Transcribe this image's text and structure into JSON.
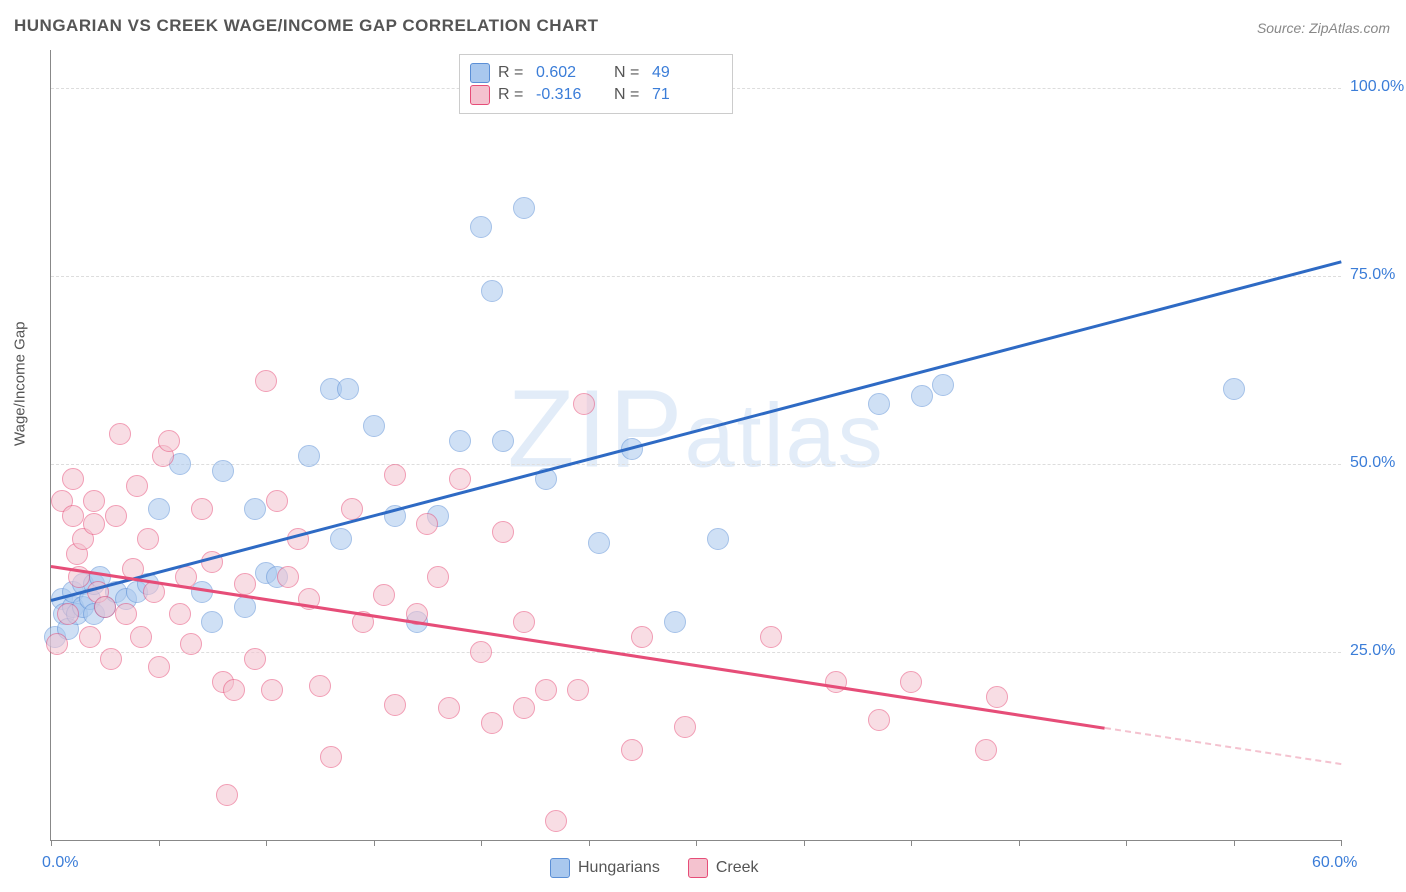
{
  "title": "HUNGARIAN VS CREEK WAGE/INCOME GAP CORRELATION CHART",
  "source": "Source: ZipAtlas.com",
  "watermark": "ZIPatlas",
  "ylabel": "Wage/Income Gap",
  "chart": {
    "type": "scatter",
    "background_color": "#ffffff",
    "grid_color": "#dddddd",
    "axis_color": "#888888",
    "label_color": "#555555",
    "tick_label_color": "#3b7dd8",
    "xlim": [
      0,
      60
    ],
    "ylim": [
      0,
      105
    ],
    "x_tick_positions": [
      0,
      5,
      10,
      15,
      20,
      25,
      30,
      35,
      40,
      45,
      50,
      55,
      60
    ],
    "x_tick_labels": {
      "0": "0.0%",
      "60": "60.0%"
    },
    "y_gridlines": [
      25,
      50,
      75,
      100
    ],
    "y_tick_labels": {
      "25": "25.0%",
      "50": "50.0%",
      "75": "75.0%",
      "100": "100.0%"
    },
    "point_radius": 10,
    "point_opacity": 0.55,
    "title_fontsize": 17,
    "label_fontsize": 15,
    "tick_fontsize": 16
  },
  "series": [
    {
      "name": "Hungarians",
      "color_fill": "#a9c8ee",
      "color_stroke": "#5b8fd6",
      "r": "0.602",
      "n": "49",
      "regression": {
        "x1": 0,
        "y1": 32,
        "x2": 60,
        "y2": 77,
        "color": "#2e6ac4",
        "width": 3
      },
      "points": [
        [
          0.2,
          27
        ],
        [
          0.5,
          32
        ],
        [
          0.6,
          30
        ],
        [
          0.8,
          28
        ],
        [
          1,
          31
        ],
        [
          1,
          33
        ],
        [
          1.2,
          30
        ],
        [
          1.5,
          34
        ],
        [
          1.5,
          31
        ],
        [
          1.8,
          32
        ],
        [
          2,
          30
        ],
        [
          2,
          34
        ],
        [
          2.3,
          35
        ],
        [
          2.5,
          31
        ],
        [
          3,
          33
        ],
        [
          3.5,
          32
        ],
        [
          4,
          33
        ],
        [
          4.5,
          34
        ],
        [
          5,
          44
        ],
        [
          6,
          50
        ],
        [
          7,
          33
        ],
        [
          7.5,
          29
        ],
        [
          8,
          49
        ],
        [
          9,
          31
        ],
        [
          9.5,
          44
        ],
        [
          10,
          35.5
        ],
        [
          10.5,
          35
        ],
        [
          12,
          51
        ],
        [
          13,
          60
        ],
        [
          13.5,
          40
        ],
        [
          13.8,
          60
        ],
        [
          15,
          55
        ],
        [
          16,
          43
        ],
        [
          17,
          29
        ],
        [
          18,
          43
        ],
        [
          19,
          53
        ],
        [
          20,
          81.5
        ],
        [
          20.5,
          73
        ],
        [
          21,
          53
        ],
        [
          22,
          84
        ],
        [
          23,
          48
        ],
        [
          25.5,
          39.5
        ],
        [
          27,
          52
        ],
        [
          29,
          29
        ],
        [
          31,
          40
        ],
        [
          38.5,
          58
        ],
        [
          40.5,
          59
        ],
        [
          41.5,
          60.5
        ],
        [
          55,
          60
        ]
      ]
    },
    {
      "name": "Creek",
      "color_fill": "#f4c2cf",
      "color_stroke": "#e64d78",
      "r": "-0.316",
      "n": "71",
      "regression": {
        "x1": 0,
        "y1": 36.5,
        "x2": 49,
        "y2": 15,
        "color": "#e64d78",
        "width": 2.5
      },
      "regression_dashed": {
        "x1": 49,
        "y1": 15,
        "x2": 60,
        "y2": 10.2,
        "color": "#f4c2cf"
      },
      "points": [
        [
          0.3,
          26
        ],
        [
          0.5,
          45
        ],
        [
          0.8,
          30
        ],
        [
          1,
          43
        ],
        [
          1,
          48
        ],
        [
          1.2,
          38
        ],
        [
          1.3,
          35
        ],
        [
          1.5,
          40
        ],
        [
          1.8,
          27
        ],
        [
          2,
          42
        ],
        [
          2,
          45
        ],
        [
          2.2,
          33
        ],
        [
          2.5,
          31
        ],
        [
          2.8,
          24
        ],
        [
          3,
          43
        ],
        [
          3.2,
          54
        ],
        [
          3.5,
          30
        ],
        [
          3.8,
          36
        ],
        [
          4,
          47
        ],
        [
          4.2,
          27
        ],
        [
          4.5,
          40
        ],
        [
          4.8,
          33
        ],
        [
          5,
          23
        ],
        [
          5.2,
          51
        ],
        [
          5.5,
          53
        ],
        [
          6,
          30
        ],
        [
          6.3,
          35
        ],
        [
          6.5,
          26
        ],
        [
          7,
          44
        ],
        [
          7.5,
          37
        ],
        [
          8,
          21
        ],
        [
          8.2,
          6
        ],
        [
          8.5,
          20
        ],
        [
          9,
          34
        ],
        [
          9.5,
          24
        ],
        [
          10,
          61
        ],
        [
          10.3,
          20
        ],
        [
          10.5,
          45
        ],
        [
          11,
          35
        ],
        [
          11.5,
          40
        ],
        [
          12,
          32
        ],
        [
          12.5,
          20.5
        ],
        [
          13,
          11
        ],
        [
          14,
          44
        ],
        [
          14.5,
          29
        ],
        [
          15.5,
          32.5
        ],
        [
          16,
          48.5
        ],
        [
          16,
          18
        ],
        [
          17,
          30
        ],
        [
          17.5,
          42
        ],
        [
          18,
          35
        ],
        [
          18.5,
          17.5
        ],
        [
          19,
          48
        ],
        [
          20,
          25
        ],
        [
          20.5,
          15.5
        ],
        [
          21,
          41
        ],
        [
          22,
          29
        ],
        [
          22,
          17.5
        ],
        [
          23,
          20
        ],
        [
          23.5,
          2.5
        ],
        [
          24.8,
          58
        ],
        [
          24.5,
          20
        ],
        [
          27,
          12
        ],
        [
          27.5,
          27
        ],
        [
          29.5,
          15
        ],
        [
          33.5,
          27
        ],
        [
          36.5,
          21
        ],
        [
          38.5,
          16
        ],
        [
          40,
          21
        ],
        [
          43.5,
          12
        ],
        [
          44,
          19
        ]
      ]
    }
  ],
  "legend_top": {
    "r_label": "R =",
    "n_label": "N ="
  },
  "legend_bottom_labels": [
    "Hungarians",
    "Creek"
  ]
}
